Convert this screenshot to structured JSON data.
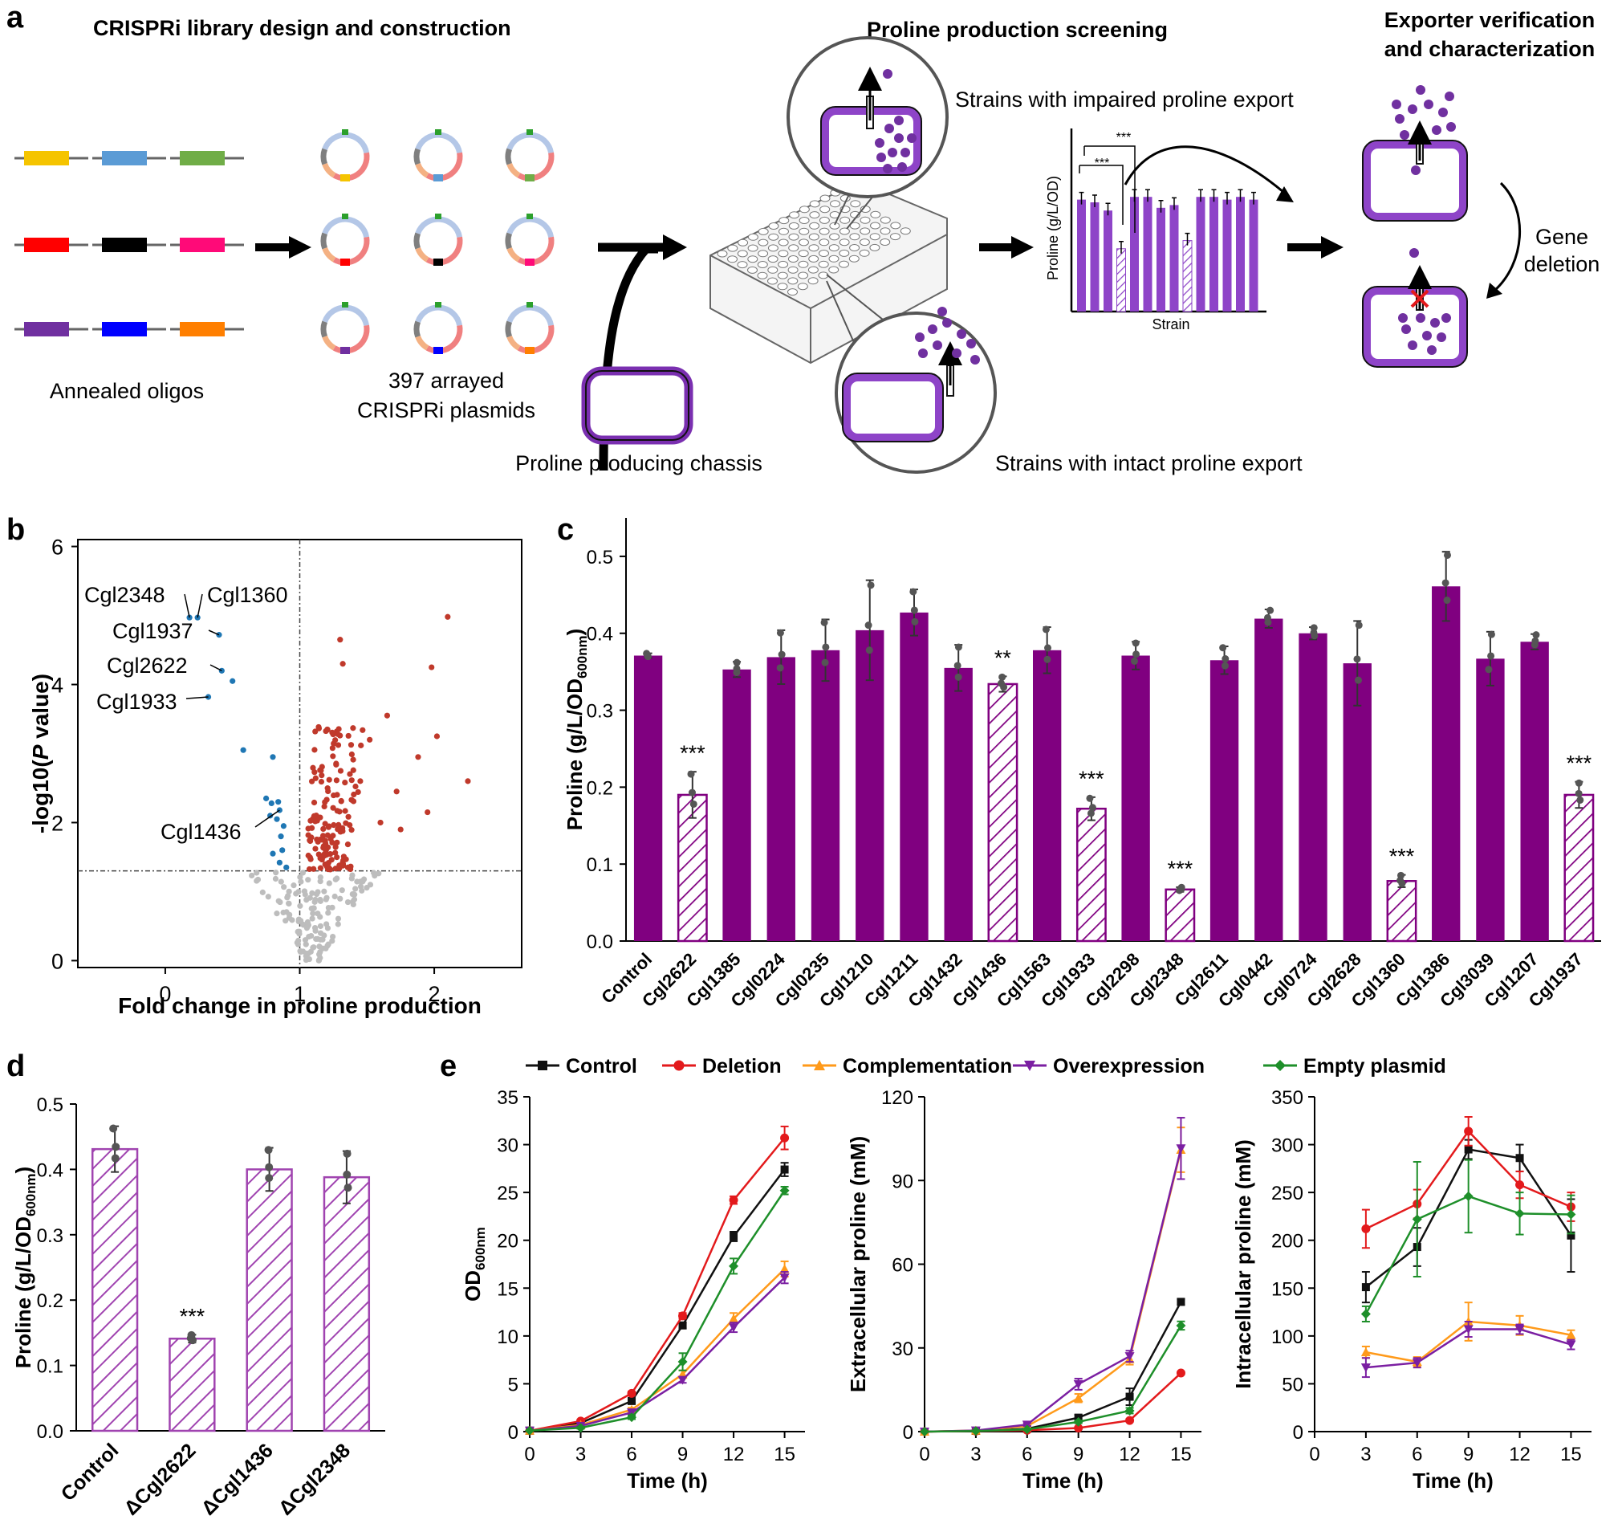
{
  "panel_a": {
    "letter": "a",
    "section_library": "CRISPRi library design and construction",
    "section_screening": "Proline production screening",
    "section_exporter_line1": "Exporter verification",
    "section_exporter_line2": "and characterization",
    "oligo_label": "Annealed oligos",
    "plasmids_line1": "397 arrayed",
    "plasmids_line2": "CRISPRi plasmids",
    "chassis_label": "Proline producing chassis",
    "impaired_label": "Strains with impaired proline export",
    "intact_label": "Strains with intact proline export",
    "gene_deletion_line1": "Gene",
    "gene_deletion_line2": "deletion",
    "mini_ylabel": "Proline (g/L/OD)",
    "mini_xlabel": "Strain",
    "mini_sig": "***",
    "oligo_colors": [
      "#f5c400",
      "#5b9bd5",
      "#70ad47",
      "#ff0000",
      "#000000",
      "#ff0a78",
      "#7030a0",
      "#0000ff",
      "#ff7f00"
    ],
    "purple": "#8e44c8"
  },
  "panel_b": {
    "letter": "b",
    "chart_data": {
      "type": "scatter",
      "xlabel": "Fold change in proline production",
      "ylabel": "-log10(P value)",
      "xlim": [
        -0.65,
        2.65
      ],
      "ylim": [
        -0.1,
        6.1
      ],
      "xticks": [
        "0",
        "1",
        "2"
      ],
      "yticks": [
        "0",
        "2",
        "4",
        "6"
      ],
      "threshold_x": 1,
      "threshold_y": 1.3,
      "colors": {
        "down": "#1f77b4",
        "up": "#c0392b",
        "ns": "#bdbdbd"
      },
      "labeled_points": [
        {
          "name": "Cgl2348",
          "x": 0.18,
          "y": 4.97
        },
        {
          "name": "Cgl1360",
          "x": 0.24,
          "y": 4.97
        },
        {
          "name": "Cgl1937",
          "x": 0.4,
          "y": 4.72
        },
        {
          "name": "Cgl2622",
          "x": 0.42,
          "y": 4.2
        },
        {
          "name": "Cgl1933",
          "x": 0.32,
          "y": 3.82
        },
        {
          "name": "Cgl1436",
          "x": 0.85,
          "y": 2.18
        }
      ],
      "down_points": [
        [
          0.5,
          4.05
        ],
        [
          0.58,
          3.05
        ],
        [
          0.8,
          2.95
        ],
        [
          0.75,
          2.35
        ],
        [
          0.79,
          2.28
        ],
        [
          0.84,
          2.3
        ],
        [
          0.78,
          2.1
        ],
        [
          0.83,
          2.05
        ],
        [
          0.88,
          1.95
        ],
        [
          0.86,
          1.8
        ],
        [
          0.8,
          1.55
        ],
        [
          0.87,
          1.6
        ],
        [
          0.9,
          1.35
        ],
        [
          0.85,
          1.42
        ]
      ],
      "up_extreme_points": [
        [
          2.1,
          4.98
        ],
        [
          1.3,
          4.65
        ],
        [
          1.32,
          4.3
        ],
        [
          1.98,
          4.25
        ],
        [
          2.02,
          3.25
        ],
        [
          1.65,
          3.55
        ],
        [
          1.52,
          3.2
        ],
        [
          1.88,
          2.95
        ],
        [
          2.25,
          2.6
        ],
        [
          1.95,
          2.15
        ],
        [
          1.72,
          2.45
        ],
        [
          1.6,
          2.0
        ],
        [
          1.45,
          2.6
        ],
        [
          1.75,
          1.9
        ]
      ],
      "up_cluster": {
        "count": 150,
        "x_range": [
          1.0,
          1.42
        ],
        "y_range": [
          1.32,
          3.4
        ]
      },
      "ns_cluster": {
        "count": 140,
        "x_range": [
          0.88,
          1.45
        ],
        "y_range": [
          0.0,
          1.28
        ]
      }
    }
  },
  "panel_c": {
    "letter": "c",
    "chart_data": {
      "type": "bar",
      "ylabel": "Proline (g/L/OD600nm)",
      "ylabel_main": "Proline (g/L/OD",
      "ylabel_sub": "600nm",
      "ylabel_end": ")",
      "ylim": [
        0,
        0.55
      ],
      "yticks": [
        "0.0",
        "0.1",
        "0.2",
        "0.3",
        "0.4",
        "0.5"
      ],
      "categories": [
        "Control",
        "Cgl2622",
        "Cgl1385",
        "Cgl0224",
        "Cgl0235",
        "Cgl1210",
        "Cgl1211",
        "Cgl1432",
        "Cgl1436",
        "Cgl1563",
        "Cgl1933",
        "Cgl2298",
        "Cgl2348",
        "Cgl2611",
        "Cgl0442",
        "Cgl0724",
        "Cgl2628",
        "Cgl1360",
        "Cgl1386",
        "Cgl3039",
        "Cgl1207",
        "Cgl1937"
      ],
      "values": [
        0.371,
        0.19,
        0.353,
        0.369,
        0.378,
        0.404,
        0.427,
        0.355,
        0.334,
        0.378,
        0.172,
        0.371,
        0.067,
        0.365,
        0.419,
        0.4,
        0.361,
        0.078,
        0.461,
        0.367,
        0.389,
        0.19
      ],
      "errors": [
        0.003,
        0.03,
        0.01,
        0.035,
        0.04,
        0.065,
        0.03,
        0.03,
        0.01,
        0.03,
        0.015,
        0.018,
        0.003,
        0.018,
        0.012,
        0.008,
        0.055,
        0.008,
        0.045,
        0.035,
        0.01,
        0.017
      ],
      "hatched": [
        false,
        true,
        false,
        false,
        false,
        false,
        false,
        false,
        true,
        false,
        true,
        false,
        true,
        false,
        false,
        false,
        false,
        true,
        false,
        false,
        false,
        true
      ],
      "significance": [
        "",
        "***",
        "",
        "",
        "",
        "",
        "",
        "",
        "**",
        "",
        "***",
        "",
        "***",
        "",
        "",
        "",
        "",
        "***",
        "",
        "",
        "",
        "***"
      ],
      "fill_color": "#800080"
    }
  },
  "panel_d": {
    "letter": "d",
    "chart_data": {
      "type": "bar",
      "ylabel": "Proline (g/L/OD600nm)",
      "ylabel_main": "Proline (g/L/OD",
      "ylabel_sub": "600nm",
      "ylabel_end": ")",
      "ylim": [
        0,
        0.5
      ],
      "yticks": [
        "0.0",
        "0.1",
        "0.2",
        "0.3",
        "0.4",
        "0.5"
      ],
      "categories": [
        "Control",
        "ΔCgl2622",
        "ΔCgl1436",
        "ΔCgl2348"
      ],
      "values": [
        0.431,
        0.141,
        0.4,
        0.388
      ],
      "errors": [
        0.035,
        0.006,
        0.033,
        0.04
      ],
      "hatched": [
        true,
        true,
        true,
        true
      ],
      "significance": [
        "",
        "***",
        "",
        ""
      ],
      "fill_color": "#a044b0"
    }
  },
  "panel_e": {
    "letter": "e",
    "legend": [
      {
        "name": "Control",
        "color": "#111111",
        "marker": "square"
      },
      {
        "name": "Deletion",
        "color": "#e31a1c",
        "marker": "circle"
      },
      {
        "name": "Complementation",
        "color": "#ff9a1a",
        "marker": "triangle-up"
      },
      {
        "name": "Overexpression",
        "color": "#7b1fa2",
        "marker": "triangle-down"
      },
      {
        "name": "Empty plasmid",
        "color": "#1e8f2a",
        "marker": "diamond"
      }
    ],
    "chart_data": [
      {
        "type": "line",
        "xlabel": "Time (h)",
        "ylabel": "OD600nm",
        "ylabel_main": "OD",
        "ylabel_sub": "600nm",
        "x": [
          0,
          3,
          6,
          9,
          12,
          15
        ],
        "xticks": [
          "0",
          "3",
          "6",
          "9",
          "12",
          "15"
        ],
        "xlim": [
          0,
          16.2
        ],
        "ylim": [
          0,
          35
        ],
        "yticks": [
          "0",
          "5",
          "10",
          "15",
          "20",
          "25",
          "30",
          "35"
        ],
        "series": [
          {
            "name": "Control",
            "values": [
              0.1,
              0.9,
              3.2,
              11.1,
              20.4,
              27.4
            ],
            "errors": [
              0,
              0.1,
              0.2,
              0.3,
              0.5,
              0.7
            ]
          },
          {
            "name": "Deletion",
            "values": [
              0.1,
              1.1,
              4.0,
              12.1,
              24.2,
              30.7
            ],
            "errors": [
              0,
              0.1,
              0.2,
              0.3,
              0.4,
              1.2
            ]
          },
          {
            "name": "Complementation",
            "values": [
              0.1,
              0.7,
              2.3,
              6.0,
              11.8,
              17.0
            ],
            "errors": [
              0,
              0.1,
              0.2,
              0.4,
              0.6,
              0.8
            ]
          },
          {
            "name": "Overexpression",
            "values": [
              0.1,
              0.6,
              2.0,
              5.4,
              10.9,
              16.1
            ],
            "errors": [
              0,
              0.1,
              0.2,
              0.3,
              0.5,
              0.6
            ]
          },
          {
            "name": "Empty plasmid",
            "values": [
              0.1,
              0.4,
              1.5,
              7.3,
              17.3,
              25.2
            ],
            "errors": [
              0,
              0.1,
              0.2,
              0.9,
              0.8,
              0.4
            ]
          }
        ]
      },
      {
        "type": "line",
        "xlabel": "Time (h)",
        "ylabel": "Extracellular proline (mM)",
        "x": [
          0,
          3,
          6,
          9,
          12,
          15
        ],
        "xticks": [
          "0",
          "3",
          "6",
          "9",
          "12",
          "15"
        ],
        "xlim": [
          0,
          16.2
        ],
        "ylim": [
          0,
          120
        ],
        "yticks": [
          "0",
          "30",
          "60",
          "90",
          "120"
        ],
        "series": [
          {
            "name": "Control",
            "values": [
              0,
              0.3,
              1.0,
              5.0,
              12.5,
              46.5
            ],
            "errors": [
              0,
              0.1,
              0.3,
              1.0,
              3.0,
              1.0
            ]
          },
          {
            "name": "Deletion",
            "values": [
              0,
              0.2,
              0.5,
              1.3,
              4.0,
              21.0
            ],
            "errors": [
              0,
              0.1,
              0.2,
              0.3,
              0.5,
              0.5
            ]
          },
          {
            "name": "Complementation",
            "values": [
              0,
              0.4,
              2.0,
              12.0,
              26.0,
              101.0
            ],
            "errors": [
              0,
              0.1,
              0.4,
              1.5,
              2.0,
              8.0
            ]
          },
          {
            "name": "Overexpression",
            "values": [
              0,
              0.4,
              2.5,
              17.0,
              27.0,
              101.5
            ],
            "errors": [
              0,
              0.1,
              0.5,
              2.0,
              2.0,
              11.0
            ]
          },
          {
            "name": "Empty plasmid",
            "values": [
              0,
              0.2,
              0.8,
              3.5,
              7.5,
              38.0
            ],
            "errors": [
              0,
              0.1,
              0.2,
              0.5,
              1.0,
              1.5
            ]
          }
        ]
      },
      {
        "type": "line",
        "xlabel": "Time (h)",
        "ylabel": "Intracellular proline (mM)",
        "x": [
          3,
          6,
          9,
          12,
          15
        ],
        "xticks": [
          "0",
          "3",
          "6",
          "9",
          "12",
          "15"
        ],
        "xlim": [
          0,
          16.2
        ],
        "ylim": [
          0,
          350
        ],
        "yticks": [
          "0",
          "50",
          "100",
          "150",
          "200",
          "250",
          "300",
          "350"
        ],
        "series": [
          {
            "name": "Control",
            "values": [
              151,
              193,
              295,
              286,
              205
            ],
            "errors": [
              16,
              20,
              10,
              14,
              38
            ]
          },
          {
            "name": "Deletion",
            "values": [
              212,
              238,
              314,
              258,
              235
            ],
            "errors": [
              20,
              15,
              15,
              14,
              15
            ]
          },
          {
            "name": "Complementation",
            "values": [
              83,
              73,
              115,
              111,
              101
            ],
            "errors": [
              6,
              5,
              20,
              10,
              5
            ]
          },
          {
            "name": "Overexpression",
            "values": [
              67,
              72,
              107,
              107,
              91
            ],
            "errors": [
              10,
              5,
              8,
              5,
              5
            ]
          },
          {
            "name": "Empty plasmid",
            "values": [
              123,
              222,
              246,
              228,
              227
            ],
            "errors": [
              8,
              60,
              38,
              22,
              20
            ]
          }
        ]
      }
    ]
  }
}
